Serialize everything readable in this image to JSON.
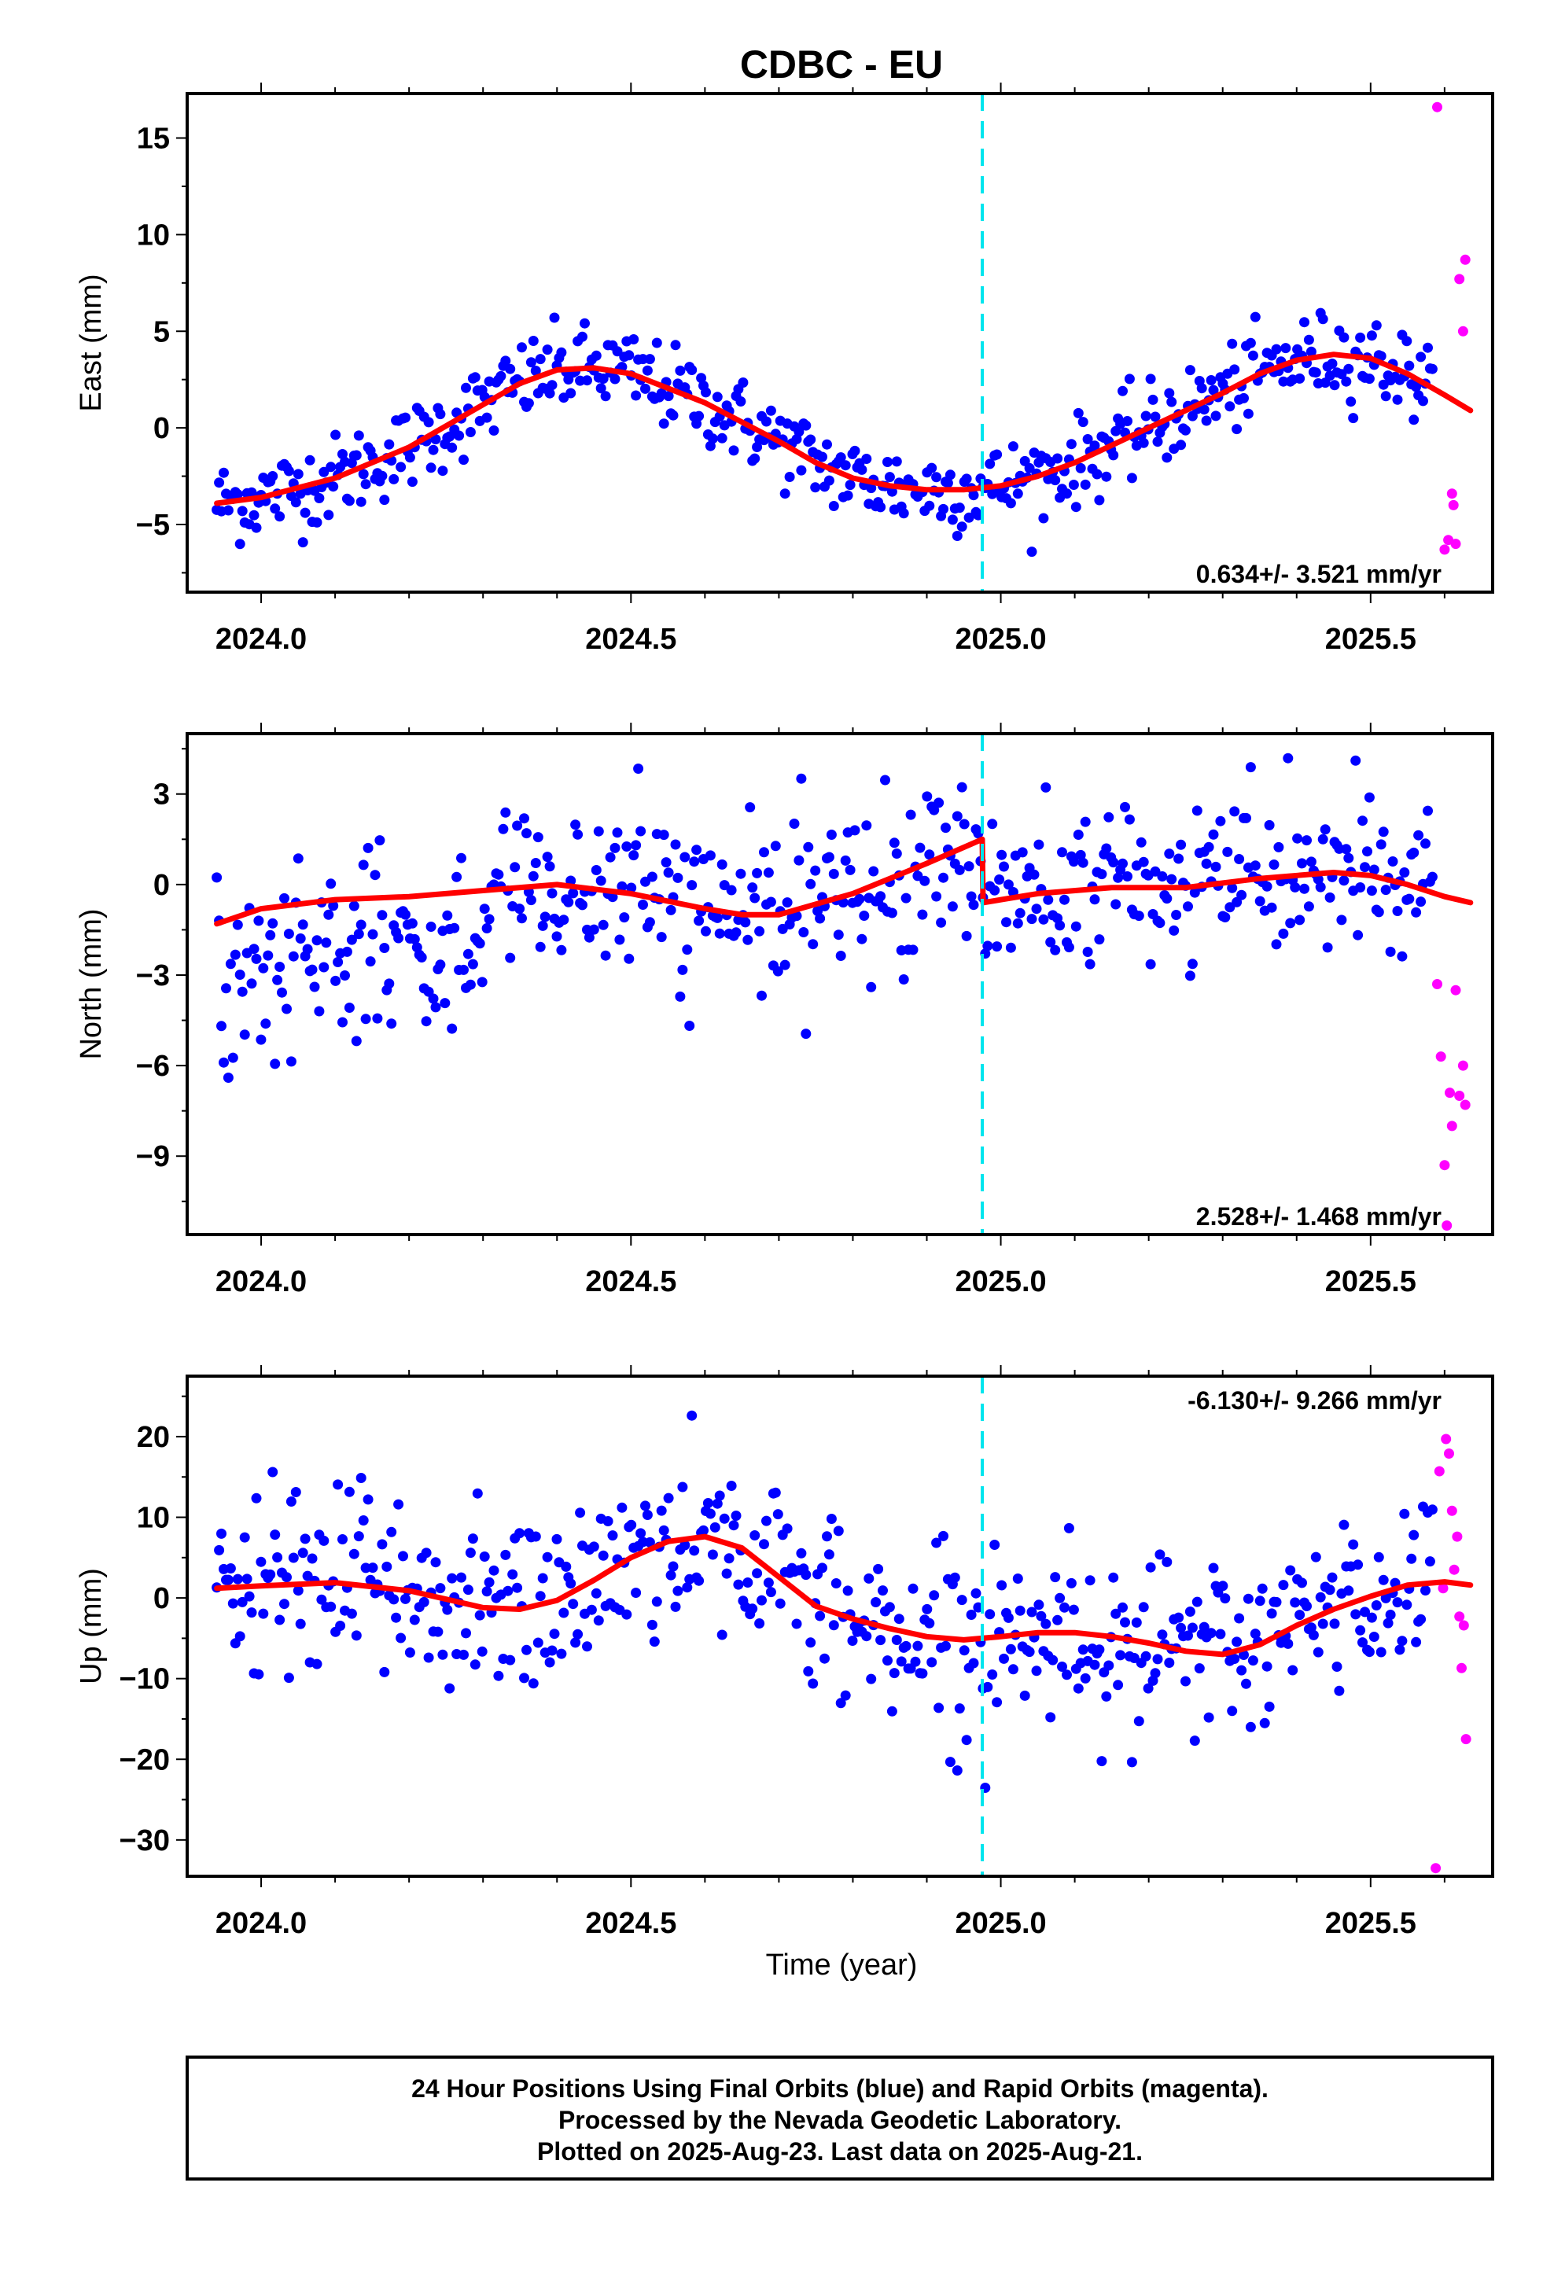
{
  "title": "CDBC - EU",
  "xlabel": "Time (year)",
  "footnote": [
    "24 Hour Positions Using Final Orbits (blue) and Rapid Orbits (magenta).",
    "Processed by the Nevada Geodetic Laboratory.",
    "Plotted on 2025-Aug-23. Last data on 2025-Aug-21."
  ],
  "colors": {
    "final": "#0000ff",
    "rapid": "#ff00ff",
    "model": "#ff0000",
    "offset": "#00e5ee"
  },
  "chart_data": [
    {
      "type": "scatter",
      "ylabel": "East (mm)",
      "rate_text": "0.634+/- 3.521 mm/yr",
      "rate_pos": "bottom-right",
      "xlim": [
        2023.9,
        2025.665
      ],
      "ylim": [
        -8.5,
        17.3
      ],
      "yticks": [
        -5,
        0,
        5,
        10,
        15
      ],
      "yticklabels": [
        "−5",
        "0",
        "5",
        "10",
        "15"
      ],
      "xticks": [
        2024.0,
        2024.5,
        2025.0,
        2025.5
      ],
      "xticklabels": [
        "2024.0",
        "2024.5",
        "2025.0",
        "2025.5"
      ],
      "offset_epoch": 2024.975,
      "model": {
        "x": [
          2023.94,
          2024.0,
          2024.1,
          2024.2,
          2024.3,
          2024.35,
          2024.4,
          2024.45,
          2024.5,
          2024.6,
          2024.7,
          2024.75,
          2024.8,
          2024.85,
          2024.9,
          2024.95,
          2025.0,
          2025.05,
          2025.1,
          2025.2,
          2025.3,
          2025.35,
          2025.4,
          2025.45,
          2025.5,
          2025.55,
          2025.6,
          2025.635
        ],
        "y": [
          -3.9,
          -3.6,
          -2.6,
          -1.0,
          1.2,
          2.3,
          3.0,
          3.1,
          2.8,
          1.3,
          -0.7,
          -1.8,
          -2.6,
          -3.0,
          -3.2,
          -3.2,
          -3.0,
          -2.5,
          -1.8,
          0.0,
          1.8,
          2.8,
          3.5,
          3.8,
          3.6,
          2.8,
          1.7,
          0.9
        ]
      },
      "rapid": {
        "x": [
          2025.59,
          2025.6,
          2025.605,
          2025.61,
          2025.612,
          2025.615,
          2025.62,
          2025.625,
          2025.628
        ],
        "y": [
          16.6,
          -6.3,
          -5.8,
          -3.4,
          -4.0,
          -6.0,
          7.7,
          5.0,
          8.7
        ]
      }
    },
    {
      "type": "scatter",
      "ylabel": "North (mm)",
      "rate_text": "2.528+/- 1.468 mm/yr",
      "rate_pos": "bottom-right",
      "xlim": [
        2023.9,
        2025.665
      ],
      "ylim": [
        -11.6,
        5.0
      ],
      "yticks": [
        -9,
        -6,
        -3,
        0,
        3
      ],
      "yticklabels": [
        "−9",
        "−6",
        "−3",
        "0",
        "3"
      ],
      "xticks": [
        2024.0,
        2024.5,
        2025.0,
        2025.5
      ],
      "xticklabels": [
        "2024.0",
        "2024.5",
        "2025.0",
        "2025.5"
      ],
      "offset_epoch": 2024.975,
      "model": {
        "x": [
          2023.94,
          2024.0,
          2024.1,
          2024.2,
          2024.3,
          2024.4,
          2024.5,
          2024.6,
          2024.65,
          2024.7,
          2024.8,
          2024.9,
          2024.975,
          2024.976,
          2025.05,
          2025.15,
          2025.25,
          2025.35,
          2025.45,
          2025.5,
          2025.55,
          2025.6,
          2025.635
        ],
        "y": [
          -1.3,
          -0.8,
          -0.5,
          -0.4,
          -0.2,
          0.0,
          -0.3,
          -0.8,
          -1.0,
          -1.0,
          -0.3,
          0.7,
          1.5,
          -0.6,
          -0.3,
          -0.1,
          -0.1,
          0.2,
          0.4,
          0.3,
          0.0,
          -0.4,
          -0.6
        ]
      },
      "rapid": {
        "x": [
          2025.59,
          2025.595,
          2025.6,
          2025.603,
          2025.607,
          2025.61,
          2025.615,
          2025.62,
          2025.625,
          2025.628
        ],
        "y": [
          -3.3,
          -5.7,
          -9.3,
          -11.3,
          -6.9,
          -8.0,
          -3.5,
          -7.0,
          -6.0,
          -7.3
        ]
      }
    },
    {
      "type": "scatter",
      "ylabel": "Up (mm)",
      "rate_text": "-6.130+/- 9.266 mm/yr",
      "rate_pos": "top-right",
      "xlim": [
        2023.9,
        2025.665
      ],
      "ylim": [
        -34.5,
        27.5
      ],
      "yticks": [
        -30,
        -20,
        -10,
        0,
        10,
        20
      ],
      "yticklabels": [
        "−30",
        "−20",
        "−10",
        "0",
        "10",
        "20"
      ],
      "xticks": [
        2024.0,
        2024.5,
        2025.0,
        2025.5
      ],
      "xticklabels": [
        "2024.0",
        "2024.5",
        "2025.0",
        "2025.5"
      ],
      "offset_epoch": 2024.975,
      "model": {
        "x": [
          2023.94,
          2024.0,
          2024.1,
          2024.2,
          2024.3,
          2024.35,
          2024.4,
          2024.45,
          2024.5,
          2024.55,
          2024.6,
          2024.65,
          2024.7,
          2024.75,
          2024.8,
          2024.85,
          2024.9,
          2024.95,
          2025.0,
          2025.05,
          2025.1,
          2025.15,
          2025.2,
          2025.25,
          2025.3,
          2025.35,
          2025.4,
          2025.45,
          2025.5,
          2025.55,
          2025.6,
          2025.635
        ],
        "y": [
          1.2,
          1.5,
          1.9,
          0.9,
          -1.2,
          -1.4,
          -0.3,
          2.2,
          5.0,
          7.0,
          7.6,
          6.2,
          2.6,
          -1.0,
          -2.6,
          -3.8,
          -4.8,
          -5.2,
          -4.8,
          -4.3,
          -4.3,
          -4.8,
          -5.6,
          -6.6,
          -7.0,
          -5.8,
          -3.4,
          -1.4,
          0.2,
          1.6,
          2.0,
          1.6
        ]
      },
      "rapid": {
        "x": [
          2025.588,
          2025.593,
          2025.598,
          2025.602,
          2025.606,
          2025.61,
          2025.613,
          2025.617,
          2025.62,
          2025.623,
          2025.626,
          2025.629
        ],
        "y": [
          -33.5,
          15.7,
          1.2,
          19.7,
          17.9,
          10.8,
          3.5,
          7.6,
          -2.3,
          -8.7,
          -3.4,
          -17.5
        ]
      }
    }
  ]
}
